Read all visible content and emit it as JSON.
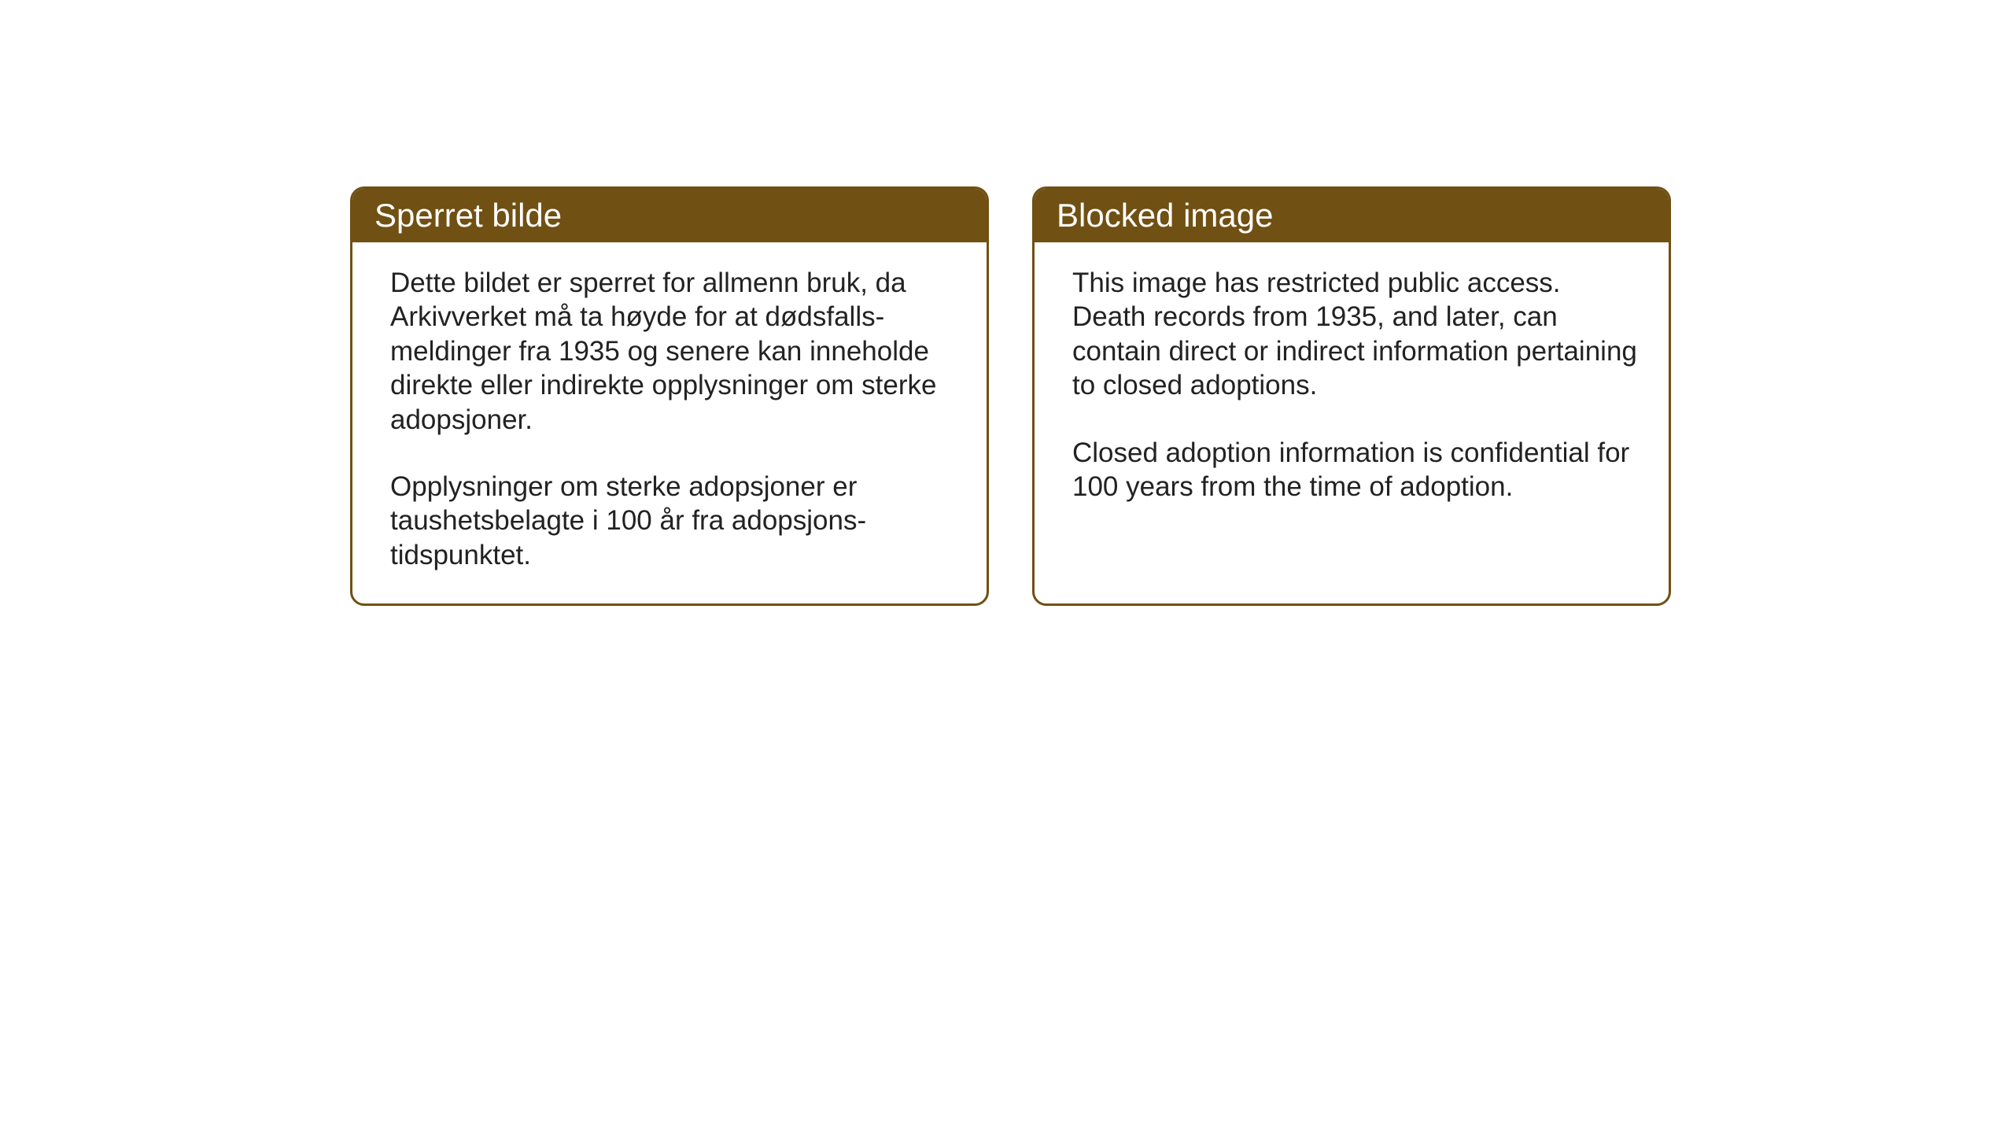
{
  "layout": {
    "background_color": "#ffffff",
    "card_border_color": "#705013",
    "card_header_bg": "#705013",
    "card_header_text_color": "#ffffff",
    "card_body_text_color": "#222222",
    "card_border_radius": 18,
    "card_border_width": 3,
    "header_fontsize": 42,
    "body_fontsize": 35
  },
  "cards": {
    "left": {
      "title": "Sperret bilde",
      "paragraph1": "Dette bildet er sperret for allmenn bruk, da Arkivverket må ta høyde for at dødsfalls-meldinger fra 1935 og senere kan inneholde direkte eller indirekte opplysninger om sterke adopsjoner.",
      "paragraph2": "Opplysninger om sterke adopsjoner er taushetsbelagte i 100 år fra adopsjons-tidspunktet."
    },
    "right": {
      "title": "Blocked image",
      "paragraph1": "This image has restricted public access. Death records from 1935, and later, can contain direct or indirect information pertaining to closed adoptions.",
      "paragraph2": "Closed adoption information is confidential for 100 years from the time of adoption."
    }
  }
}
